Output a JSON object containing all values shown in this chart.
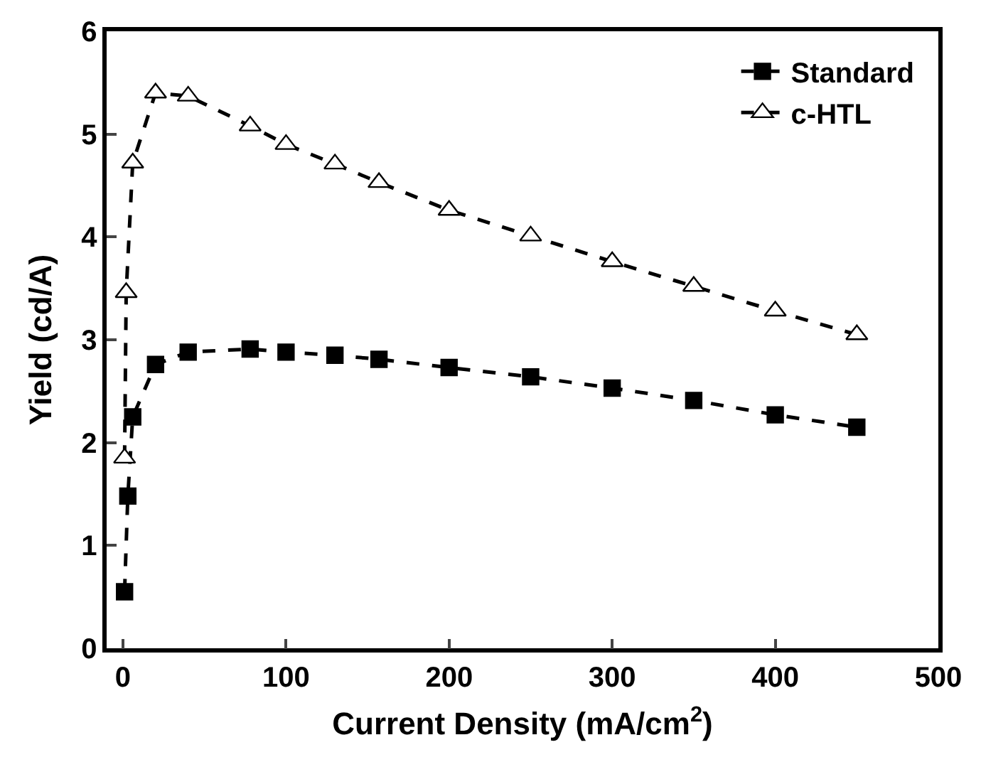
{
  "chart_data": {
    "type": "line",
    "xlabel": "Current Density (mA/cm$^{2}$)",
    "ylabel": "Yield (cd/A)",
    "xlim": [
      -10,
      500
    ],
    "xticks": [
      0,
      100,
      200,
      300,
      400,
      500
    ],
    "ylim": [
      0,
      6
    ],
    "yticks": [
      0,
      1,
      2,
      3,
      4,
      5,
      6
    ],
    "legend": "top right",
    "line_style": "dashed",
    "series": [
      {
        "name": "Standard",
        "color": "#000000",
        "marker": "square",
        "x": [
          1,
          3,
          6,
          20,
          40,
          78,
          100,
          130,
          157,
          200,
          250,
          300,
          350,
          400,
          450
        ],
        "values": [
          0.55,
          1.48,
          2.25,
          2.76,
          2.88,
          2.91,
          2.88,
          2.85,
          2.81,
          2.73,
          2.64,
          2.53,
          2.41,
          2.27,
          2.15
        ]
      },
      {
        "name": "c-HTL",
        "color": "#000000",
        "marker": "triangle",
        "x": [
          1,
          2,
          6,
          20,
          40,
          78,
          100,
          130,
          157,
          200,
          250,
          300,
          350,
          400,
          450
        ],
        "values": [
          1.85,
          3.46,
          4.72,
          5.4,
          5.37,
          5.08,
          4.9,
          4.71,
          4.53,
          4.26,
          4.01,
          3.76,
          3.52,
          3.28,
          3.05
        ]
      }
    ]
  }
}
